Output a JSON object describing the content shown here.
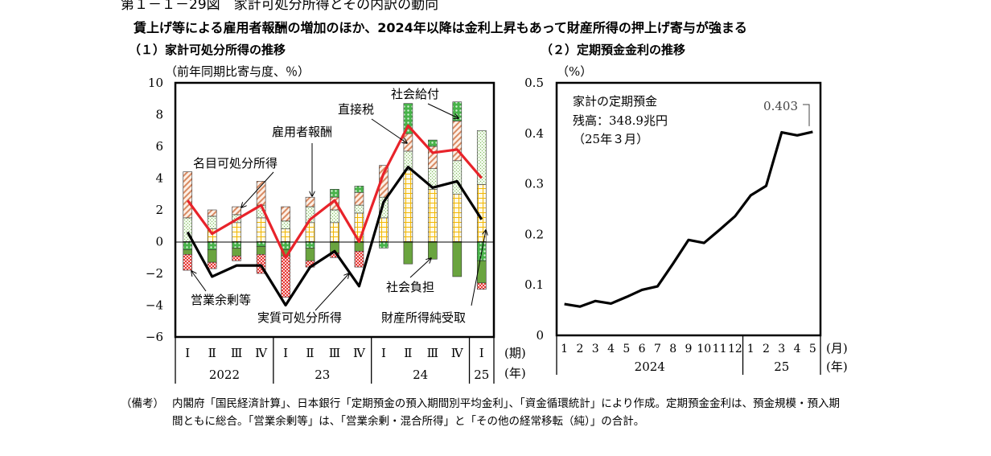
{
  "figure": {
    "title": "第１－１－29図　家計可処分所得とその内訳の動向",
    "subtitle": "賃上げ等による雇用者報酬の増加のほか、2024年以降は金利上昇もあって財産所得の押上げ寄与が強まる"
  },
  "notes": {
    "label": "（備考）",
    "text": "内閣府「国民経済計算」、日本銀行「定期預金の預入期間別平均金利」、「資金循環統計」により作成。定期預金金利は、預金規模・預入期間ともに総合。「営業余剰等」は、「営業余剰・混合所得」と「その他の経常移転（純）」の合計。"
  },
  "chart_data": [
    {
      "type": "bar",
      "panel_title": "（１）家計可処分所得の推移",
      "ylabel": "（前年同期比寄与度、％）",
      "ylim": [
        -6,
        10
      ],
      "yticks": [
        "10",
        "8",
        "6",
        "4",
        "2",
        "0",
        "−2",
        "−4",
        "−6"
      ],
      "categories": [
        "Ⅰ",
        "Ⅱ",
        "Ⅲ",
        "Ⅳ",
        "Ⅰ",
        "Ⅱ",
        "Ⅲ",
        "Ⅳ",
        "Ⅰ",
        "Ⅱ",
        "Ⅲ",
        "Ⅳ",
        "Ⅰ"
      ],
      "years": [
        "2022",
        "23",
        "24",
        "25"
      ],
      "period_label": "(期)",
      "year_label": "(年)",
      "stacks": [
        {
          "name": "雇用者報酬",
          "color": "#f5c242",
          "values": [
            0,
            0.8,
            1.2,
            1.5,
            0.8,
            1.2,
            1.2,
            1.8,
            1.5,
            4.5,
            3.3,
            3.0,
            3.6
          ]
        },
        {
          "name": "財産所得純受取",
          "color": "#a9cf8a",
          "values": [
            1.5,
            0.8,
            0.5,
            0.8,
            0.5,
            1.0,
            0.8,
            0.5,
            1.3,
            1.2,
            1.3,
            2.1,
            3.4
          ]
        },
        {
          "name": "社会給付",
          "color": "#d9a08a",
          "values": [
            2.9,
            0.4,
            0.5,
            1.5,
            0.9,
            0.6,
            0.8,
            0.8,
            2.0,
            1.1,
            1.4,
            2.5,
            0
          ]
        },
        {
          "name": "直接税",
          "color": "#4caf50",
          "values": [
            -0.5,
            -0.5,
            -0.4,
            -0.3,
            -0.5,
            -0.4,
            0.5,
            0.4,
            -0.4,
            1.9,
            0.4,
            1.2,
            -1.2
          ]
        },
        {
          "name": "社会負担",
          "color": "#5e9c3a",
          "values": [
            -0.3,
            -0.8,
            -0.5,
            -0.5,
            -0.4,
            -0.8,
            -0.7,
            -0.6,
            0,
            -1.4,
            -1.1,
            -2.2,
            -1.4
          ]
        },
        {
          "name": "営業余剰等",
          "color": "#e53935",
          "values": [
            -1.0,
            -0.4,
            -0.3,
            -1.2,
            -2.6,
            -0.4,
            -0.3,
            -1.0,
            0,
            0,
            0,
            0,
            -0.4
          ]
        }
      ],
      "lines": [
        {
          "name": "名目可処分所得",
          "color": "#e8232a",
          "values": [
            2.6,
            0.5,
            1.4,
            2.3,
            -1.0,
            1.4,
            2.6,
            0.0,
            4.3,
            7.3,
            5.6,
            5.8,
            4.0
          ]
        },
        {
          "name": "実質可処分所得",
          "color": "#000000",
          "values": [
            0.6,
            -2.2,
            -1.5,
            -1.5,
            -4.0,
            -1.6,
            -0.6,
            -2.8,
            2.5,
            4.7,
            3.4,
            3.8,
            1.4
          ]
        }
      ]
    },
    {
      "type": "line",
      "panel_title": "（２）定期預金金利の推移",
      "ylabel": "（%）",
      "ylim": [
        0,
        0.5
      ],
      "yticks": [
        "0.5",
        "0.4",
        "0.3",
        "0.2",
        "0.1",
        "0"
      ],
      "x": [
        "1",
        "2",
        "3",
        "4",
        "5",
        "6",
        "7",
        "8",
        "9",
        "10",
        "11",
        "12",
        "1",
        "2",
        "3",
        "4",
        "5"
      ],
      "years": [
        "2024",
        "25"
      ],
      "month_label": "(月)",
      "year_label": "(年)",
      "series": [
        {
          "values": [
            0.062,
            0.057,
            0.068,
            0.063,
            0.076,
            0.09,
            0.097,
            0.142,
            0.189,
            0.183,
            0.209,
            0.236,
            0.277,
            0.296,
            0.402,
            0.396,
            0.403
          ]
        }
      ],
      "last_value_label": "0.403",
      "annotation": [
        "家計の定期預金",
        "残高：348.9兆円",
        "（25年３月）"
      ]
    }
  ]
}
